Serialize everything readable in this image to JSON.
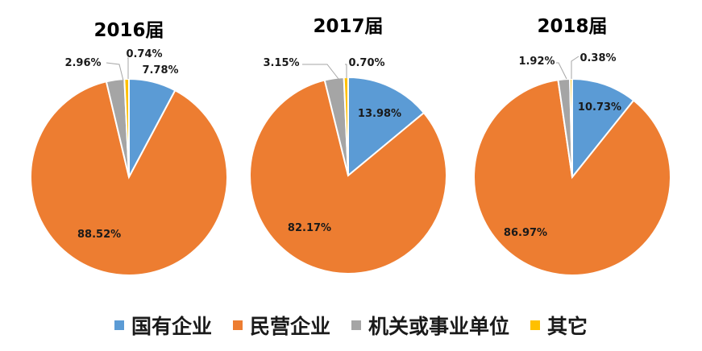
{
  "chart_data": [
    {
      "type": "pie",
      "title": "2016届",
      "categories": [
        "国有企业",
        "民营企业",
        "机关或事业单位",
        "其它"
      ],
      "values": [
        7.78,
        88.52,
        2.96,
        0.74
      ],
      "labels": [
        "7.78%",
        "88.52%",
        "2.96%",
        "0.74%"
      ]
    },
    {
      "type": "pie",
      "title": "2017届",
      "categories": [
        "国有企业",
        "民营企业",
        "机关或事业单位",
        "其它"
      ],
      "values": [
        13.98,
        82.17,
        3.15,
        0.7
      ],
      "labels": [
        "13.98%",
        "82.17%",
        "3.15%",
        "0.70%"
      ]
    },
    {
      "type": "pie",
      "title": "2018届",
      "categories": [
        "国有企业",
        "民营企业",
        "机关或事业单位",
        "其它"
      ],
      "values": [
        10.73,
        86.97,
        1.92,
        0.38
      ],
      "labels": [
        "10.73%",
        "86.97%",
        "1.92%",
        "0.38%"
      ]
    }
  ],
  "legend": {
    "position": "bottom",
    "items": [
      {
        "label": "国有企业",
        "color": "#5B9BD5"
      },
      {
        "label": "民营企业",
        "color": "#ED7D31"
      },
      {
        "label": "机关或事业单位",
        "color": "#A5A5A5"
      },
      {
        "label": "其它",
        "color": "#FFC000"
      }
    ]
  }
}
